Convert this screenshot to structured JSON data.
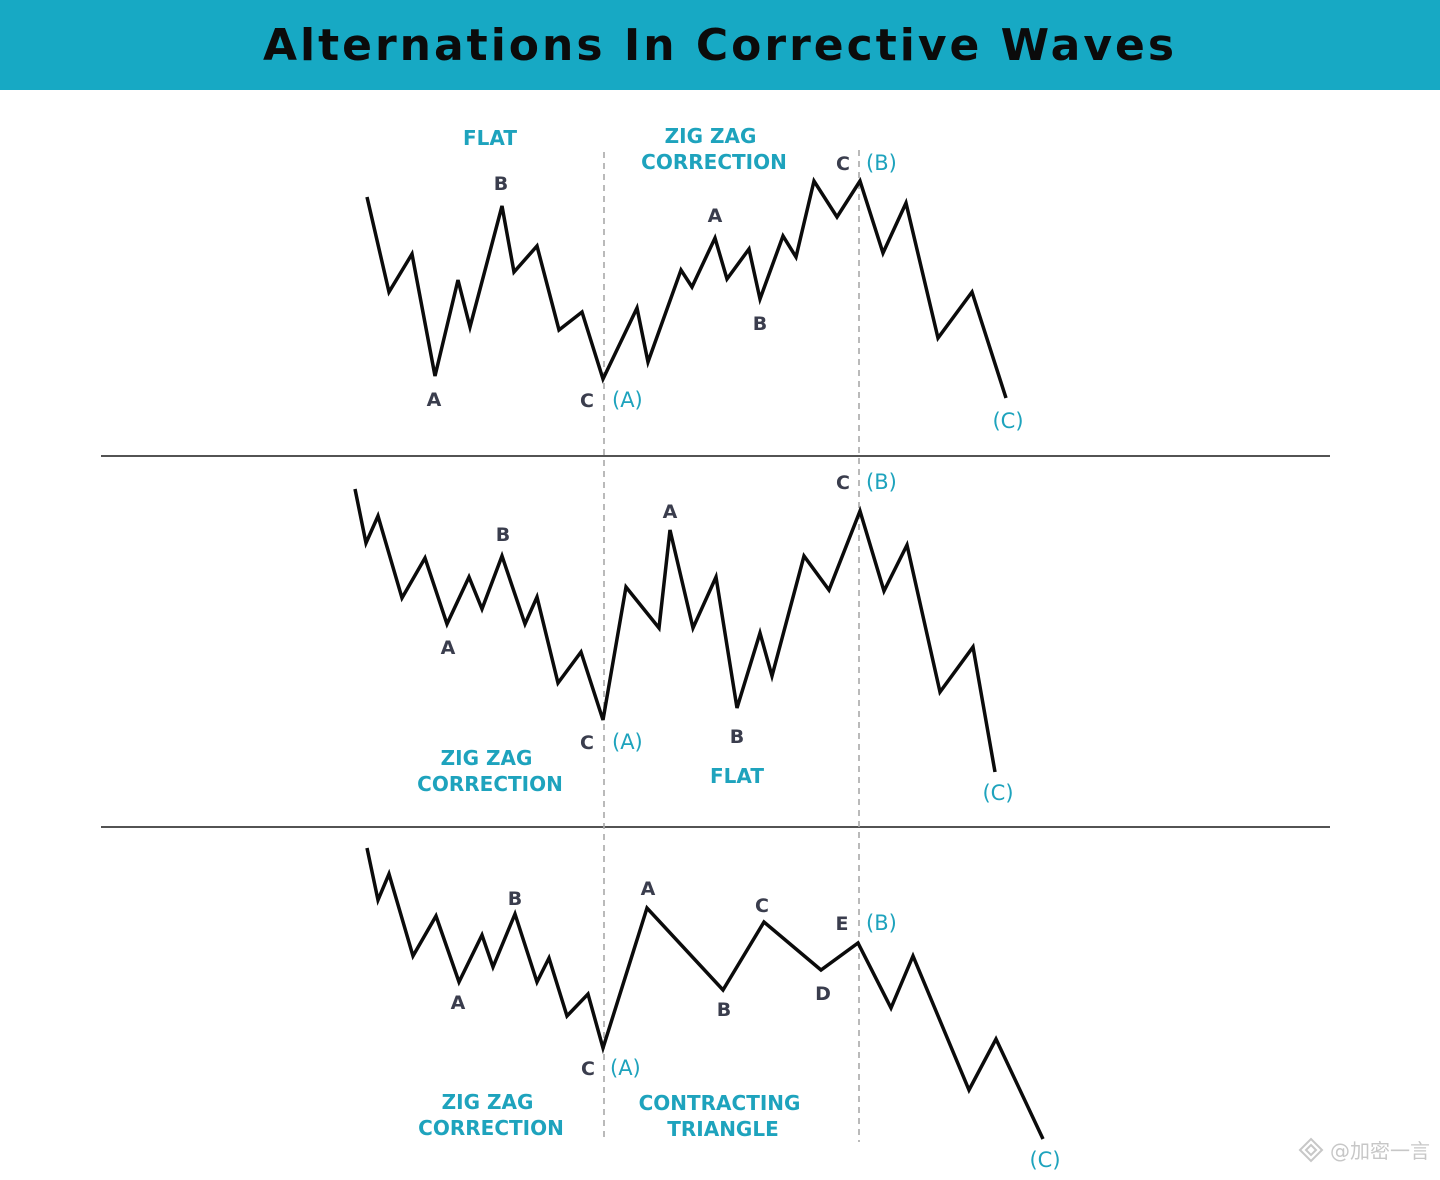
{
  "header": {
    "title": "Alternations In Corrective Waves"
  },
  "colors": {
    "header_bg": "#17a9c4",
    "accent": "#1ea3bd",
    "dark_label": "#3a3d4d",
    "line": "#0b0b0b"
  },
  "panels": [
    {
      "titles": [
        {
          "lines": [
            "FLAT"
          ]
        },
        {
          "lines": [
            "ZIG ZAG",
            "CORRECTION"
          ]
        }
      ],
      "wave_labels": [
        "B",
        "A",
        "C",
        "A",
        "B",
        "C"
      ],
      "degree_labels": [
        "(A)",
        "(B)",
        "(C)"
      ]
    },
    {
      "titles": [
        {
          "lines": [
            "ZIG ZAG",
            "CORRECTION"
          ]
        },
        {
          "lines": [
            "FLAT"
          ]
        }
      ],
      "wave_labels": [
        "B",
        "A",
        "C",
        "A",
        "B",
        "C"
      ],
      "degree_labels": [
        "(A)",
        "(B)",
        "(C)"
      ]
    },
    {
      "titles": [
        {
          "lines": [
            "ZIG ZAG",
            "CORRECTION"
          ]
        },
        {
          "lines": [
            "CONTRACTING",
            "TRIANGLE"
          ]
        }
      ],
      "wave_labels": [
        "B",
        "A",
        "C",
        "A",
        "B",
        "C",
        "D",
        "E"
      ],
      "degree_labels": [
        "(A)",
        "(B)",
        "(C)"
      ]
    }
  ],
  "watermark": {
    "icon": "diamond-logo-icon",
    "text": "@加密一言"
  }
}
